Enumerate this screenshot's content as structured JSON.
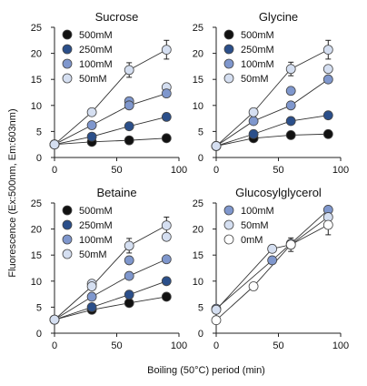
{
  "figure": {
    "ylabel": "Fluorescence (Ex:500nm, Em:603nm)",
    "xlabel": "Boiling (50°C) period (min)"
  },
  "colors": {
    "500mM": "#111111",
    "250mM": "#2b4f8a",
    "100mM": "#7f97cd",
    "50mM": "#d5dff1",
    "0mM": "#ffffff",
    "line": "#333333"
  },
  "chart_data": [
    {
      "type": "line",
      "title": "Sucrose",
      "x": [
        0,
        30,
        60,
        90
      ],
      "xlim": [
        0,
        100
      ],
      "ylim": [
        0,
        25
      ],
      "xticks": [
        0,
        50,
        100
      ],
      "yticks": [
        0,
        5,
        10,
        15,
        20,
        25
      ],
      "legend": "top-left",
      "series": [
        {
          "name": "500mM",
          "values": [
            2.5,
            3.0,
            3.3,
            3.7
          ]
        },
        {
          "name": "250mM",
          "values": [
            2.5,
            4.0,
            6.0,
            7.8
          ]
        },
        {
          "name": "100mM",
          "values": [
            2.5,
            6.2,
            10.0,
            12.3
          ]
        },
        {
          "name": "50mM",
          "values": [
            2.5,
            8.7,
            16.8,
            20.7
          ],
          "err": [
            0,
            0.6,
            1.4,
            1.8
          ]
        }
      ],
      "extra_points": [
        {
          "series": "100mM",
          "x": 60,
          "y": 10.8
        },
        {
          "series": "50mM",
          "x": 90,
          "y": 13.5
        }
      ]
    },
    {
      "type": "line",
      "title": "Glycine",
      "x": [
        0,
        30,
        60,
        90
      ],
      "xlim": [
        0,
        100
      ],
      "ylim": [
        0,
        25
      ],
      "xticks": [
        0,
        50,
        100
      ],
      "yticks": [
        0,
        5,
        10,
        15,
        20,
        25
      ],
      "legend": "top-left",
      "series": [
        {
          "name": "500mM",
          "values": [
            2.2,
            3.7,
            4.3,
            4.5
          ]
        },
        {
          "name": "250mM",
          "values": [
            2.2,
            4.5,
            7.0,
            8.1
          ]
        },
        {
          "name": "100mM",
          "values": [
            2.2,
            7.0,
            10.0,
            15.0
          ]
        },
        {
          "name": "50mM",
          "values": [
            2.2,
            8.7,
            17.0,
            20.7
          ],
          "err": [
            0,
            0.7,
            1.3,
            1.8
          ]
        }
      ],
      "extra_points": [
        {
          "series": "100mM",
          "x": 60,
          "y": 12.8
        },
        {
          "series": "50mM",
          "x": 90,
          "y": 17.0
        }
      ]
    },
    {
      "type": "line",
      "title": "Betaine",
      "x": [
        0,
        30,
        60,
        90
      ],
      "xlim": [
        0,
        100
      ],
      "ylim": [
        0,
        25
      ],
      "xticks": [
        0,
        50,
        100
      ],
      "yticks": [
        0,
        5,
        10,
        15,
        20,
        25
      ],
      "legend": "top-left",
      "series": [
        {
          "name": "500mM",
          "values": [
            2.6,
            4.5,
            5.8,
            7.0
          ]
        },
        {
          "name": "250mM",
          "values": [
            2.6,
            5.0,
            7.4,
            10.0
          ]
        },
        {
          "name": "100mM",
          "values": [
            2.6,
            7.0,
            11.0,
            14.2
          ]
        },
        {
          "name": "50mM",
          "values": [
            2.6,
            9.0,
            16.8,
            20.7
          ],
          "err": [
            0,
            0.7,
            1.4,
            1.6
          ]
        }
      ],
      "extra_points": [
        {
          "series": "100mM",
          "x": 60,
          "y": 14.0
        },
        {
          "series": "50mM",
          "x": 90,
          "y": 18.5
        },
        {
          "series": "50mM",
          "x": 30,
          "y": 9.5
        }
      ]
    },
    {
      "type": "line",
      "title": "Glucosylglycerol",
      "x": [
        0,
        30,
        45,
        60,
        90
      ],
      "xlim": [
        0,
        100
      ],
      "ylim": [
        0,
        25
      ],
      "xticks": [
        0,
        50,
        100
      ],
      "yticks": [
        0,
        5,
        10,
        15,
        20,
        25
      ],
      "legend": "top-left",
      "series": [
        {
          "name": "100mM",
          "x": [
            0,
            45,
            60,
            90
          ],
          "values": [
            4.7,
            14.0,
            17.2,
            23.7
          ]
        },
        {
          "name": "50mM",
          "x": [
            0,
            45,
            60,
            90
          ],
          "values": [
            4.5,
            16.2,
            17.0,
            22.3
          ]
        },
        {
          "name": "0mM",
          "x": [
            0,
            30,
            60,
            90
          ],
          "values": [
            2.5,
            9.0,
            17.0,
            20.8
          ],
          "err": [
            0,
            0.7,
            1.3,
            1.9
          ]
        }
      ],
      "extra_points": []
    }
  ]
}
